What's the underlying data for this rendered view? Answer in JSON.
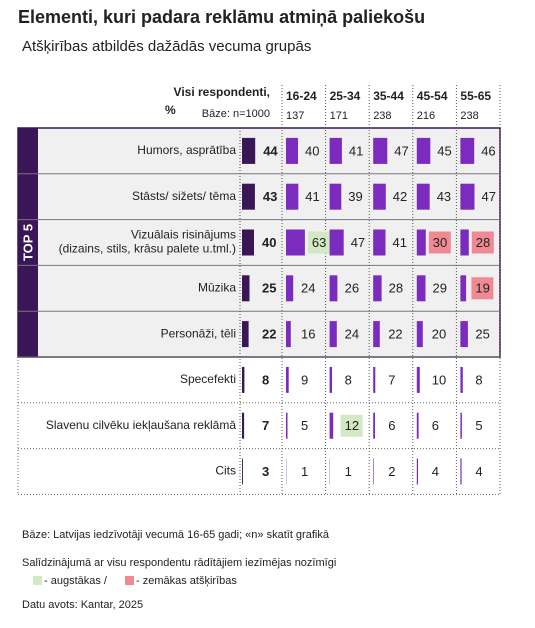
{
  "chart_data": {
    "type": "bar-table",
    "title": "Elementi, kuri padara reklāmu atmiņā paliekošu",
    "subtitle": "Atšķirības atbildēs dažādās vecuma grupās",
    "total_header": "Visi respondenti,",
    "unit_label": "%",
    "base_label": "Bāze: n=1000",
    "top_label": "TOP 5",
    "top_rows": 5,
    "xlim": [
      0,
      100
    ],
    "categories": [
      "Humors, asprātība",
      "Stāsts/ sižets/ tēma",
      "Vizuālais risinājums\n(dizains, stils, krāsu palete u.tml.)",
      "Mūzika",
      "Personāži, tēli",
      "Specefekti",
      "Slavenu cilvēku iekļaušana reklāmā",
      "Cits"
    ],
    "total": {
      "color": "#3a1656",
      "values": [
        44,
        43,
        40,
        25,
        22,
        8,
        7,
        3
      ]
    },
    "series": [
      {
        "name": "16-24",
        "base": 137,
        "color": "#7b2cbf",
        "values": [
          40,
          41,
          63,
          24,
          16,
          9,
          5,
          1
        ],
        "marks": [
          null,
          null,
          "higher",
          null,
          null,
          null,
          null,
          null
        ]
      },
      {
        "name": "25-34",
        "base": 171,
        "color": "#7b2cbf",
        "values": [
          41,
          39,
          47,
          26,
          24,
          8,
          12,
          1
        ],
        "marks": [
          null,
          null,
          null,
          null,
          null,
          null,
          "higher",
          null
        ]
      },
      {
        "name": "35-44",
        "base": 238,
        "color": "#7b2cbf",
        "values": [
          47,
          42,
          41,
          28,
          22,
          7,
          6,
          2
        ],
        "marks": [
          null,
          null,
          null,
          null,
          null,
          null,
          null,
          null
        ]
      },
      {
        "name": "45-54",
        "base": 216,
        "color": "#7b2cbf",
        "values": [
          45,
          43,
          30,
          29,
          20,
          10,
          6,
          4
        ],
        "marks": [
          null,
          null,
          "lower",
          null,
          null,
          null,
          null,
          null
        ]
      },
      {
        "name": "55-65",
        "base": 238,
        "color": "#7b2cbf",
        "values": [
          46,
          47,
          28,
          19,
          25,
          8,
          5,
          4
        ],
        "marks": [
          null,
          null,
          "lower",
          "lower",
          null,
          null,
          null,
          null
        ]
      }
    ],
    "highlight_colors": {
      "higher": "#d3e9c3",
      "lower": "#ef8a95"
    },
    "notes": {
      "base_note": "Bāze: Latvijas iedzīvotāji vecumā 16-65 gadi; «n» skatīt grafikā",
      "significance": "Salīdzinājumā ar visu respondentu rādītājiem iezīmējas nozīmīgi",
      "higher_label": "- augstākas /",
      "lower_label": "- zemākas atšķirības",
      "source": "Datu avots: Kantar, 2025"
    }
  }
}
